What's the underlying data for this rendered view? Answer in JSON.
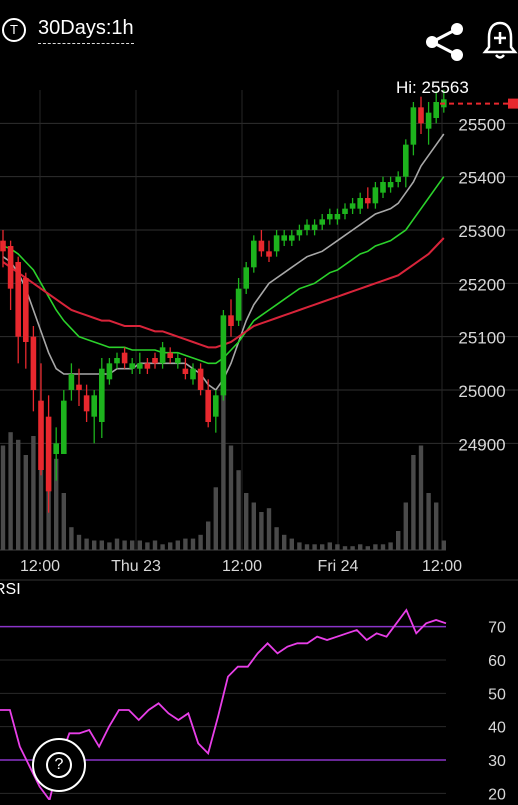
{
  "header": {
    "badge": "T",
    "title": "30Days:1h",
    "share_icon": "share-icon",
    "alert_icon": "bell-plus-icon"
  },
  "help": {
    "label": "?"
  },
  "chart_data": [
    {
      "type": "candlestick",
      "title": "",
      "x_labels": [
        "12:00",
        "Thu 23",
        "12:00",
        "Fri 24",
        "12:00"
      ],
      "y_ticks": [
        25500,
        25400,
        25300,
        25200,
        25100,
        25000,
        24900
      ],
      "ylim": [
        24700,
        25600
      ],
      "high_label": "Hi: 25563",
      "last_price": 25537,
      "colors": {
        "up": "#1db31d",
        "down": "#e8282e",
        "ma_gray": "#a8a8a8",
        "ma_green": "#2bd12b",
        "ma_red": "#d8243a",
        "volume": "#4a4a4a",
        "price_line": "#e8282e"
      },
      "candles": [
        [
          25280,
          25300,
          25230,
          25260
        ],
        [
          25270,
          25280,
          25150,
          25190
        ],
        [
          25240,
          25250,
          25050,
          25100
        ],
        [
          25210,
          25220,
          25040,
          25090
        ],
        [
          25100,
          25120,
          24960,
          25000
        ],
        [
          24980,
          25050,
          24840,
          24850
        ],
        [
          24950,
          24990,
          24770,
          24810
        ],
        [
          24880,
          24930,
          24830,
          24900
        ],
        [
          24880,
          25000,
          24880,
          24980
        ],
        [
          25000,
          25050,
          24980,
          25030
        ],
        [
          25010,
          25040,
          24970,
          25000
        ],
        [
          24990,
          25010,
          24940,
          24960
        ],
        [
          24950,
          25000,
          24900,
          24990
        ],
        [
          24940,
          25060,
          24910,
          25040
        ],
        [
          25020,
          25060,
          25010,
          25050
        ],
        [
          25050,
          25070,
          25040,
          25060
        ],
        [
          25070,
          25080,
          25040,
          25050
        ],
        [
          25040,
          25060,
          25030,
          25050
        ],
        [
          25040,
          25070,
          25030,
          25050
        ],
        [
          25050,
          25060,
          25030,
          25040
        ],
        [
          25060,
          25070,
          25040,
          25050
        ],
        [
          25050,
          25090,
          25040,
          25080
        ],
        [
          25070,
          25080,
          25050,
          25060
        ],
        [
          25050,
          25070,
          25040,
          25060
        ],
        [
          25040,
          25060,
          25020,
          25030
        ],
        [
          25020,
          25050,
          25010,
          25040
        ],
        [
          25040,
          25050,
          24990,
          25000
        ],
        [
          25000,
          25020,
          24930,
          24940
        ],
        [
          24950,
          25000,
          24920,
          24990
        ],
        [
          24990,
          25150,
          24980,
          25140
        ],
        [
          25140,
          25170,
          25100,
          25120
        ],
        [
          25130,
          25210,
          25120,
          25190
        ],
        [
          25190,
          25240,
          25180,
          25230
        ],
        [
          25230,
          25290,
          25220,
          25280
        ],
        [
          25280,
          25300,
          25250,
          25260
        ],
        [
          25260,
          25280,
          25240,
          25250
        ],
        [
          25260,
          25300,
          25250,
          25290
        ],
        [
          25280,
          25300,
          25270,
          25290
        ],
        [
          25280,
          25300,
          25270,
          25290
        ],
        [
          25290,
          25310,
          25280,
          25300
        ],
        [
          25300,
          25320,
          25290,
          25310
        ],
        [
          25300,
          25320,
          25290,
          25310
        ],
        [
          25310,
          25330,
          25300,
          25320
        ],
        [
          25320,
          25340,
          25310,
          25330
        ],
        [
          25320,
          25340,
          25310,
          25330
        ],
        [
          25330,
          25350,
          25320,
          25340
        ],
        [
          25340,
          25360,
          25330,
          25350
        ],
        [
          25340,
          25370,
          25330,
          25360
        ],
        [
          25360,
          25380,
          25340,
          25350
        ],
        [
          25350,
          25390,
          25340,
          25380
        ],
        [
          25370,
          25400,
          25360,
          25390
        ],
        [
          25380,
          25400,
          25370,
          25390
        ],
        [
          25390,
          25410,
          25380,
          25400
        ],
        [
          25400,
          25470,
          25380,
          25460
        ],
        [
          25460,
          25540,
          25440,
          25530
        ],
        [
          25530,
          25550,
          25480,
          25500
        ],
        [
          25490,
          25540,
          25460,
          25520
        ],
        [
          25510,
          25560,
          25500,
          25540
        ],
        [
          25530,
          25563,
          25520,
          25545
        ]
      ],
      "ma_gray": [
        25250,
        25240,
        25220,
        25190,
        25150,
        25110,
        25070,
        25040,
        25030,
        25030,
        25030,
        25030,
        25030,
        25030,
        25030,
        25040,
        25040,
        25040,
        25050,
        25050,
        25050,
        25050,
        25050,
        25050,
        25050,
        25040,
        25030,
        25010,
        25000,
        25020,
        25050,
        25090,
        25130,
        25160,
        25180,
        25200,
        25210,
        25220,
        25230,
        25240,
        25250,
        25255,
        25260,
        25270,
        25280,
        25290,
        25300,
        25310,
        25320,
        25330,
        25335,
        25340,
        25350,
        25370,
        25390,
        25420,
        25440,
        25460,
        25480
      ],
      "ma_green": [
        25270,
        25265,
        25255,
        25240,
        25225,
        25200,
        25175,
        25150,
        25130,
        25115,
        25100,
        25095,
        25090,
        25085,
        25080,
        25080,
        25080,
        25075,
        25075,
        25075,
        25075,
        25070,
        25070,
        25070,
        25065,
        25060,
        25055,
        25050,
        25050,
        25060,
        25075,
        25090,
        25110,
        25130,
        25140,
        25150,
        25160,
        25170,
        25180,
        25190,
        25195,
        25200,
        25210,
        25220,
        25225,
        25235,
        25245,
        25255,
        25260,
        25270,
        25275,
        25280,
        25290,
        25300,
        25320,
        25340,
        25360,
        25380,
        25400
      ],
      "ma_red": [
        25240,
        25230,
        25220,
        25210,
        25200,
        25190,
        25180,
        25170,
        25160,
        25150,
        25145,
        25140,
        25135,
        25130,
        25130,
        25125,
        25120,
        25120,
        25120,
        25115,
        25110,
        25110,
        25105,
        25100,
        25095,
        25090,
        25085,
        25080,
        25080,
        25085,
        25090,
        25100,
        25110,
        25120,
        25125,
        25130,
        25135,
        25140,
        25145,
        25150,
        25155,
        25160,
        25165,
        25170,
        25175,
        25180,
        25185,
        25190,
        25195,
        25200,
        25205,
        25210,
        25215,
        25225,
        25235,
        25245,
        25255,
        25270,
        25285
      ],
      "volume": [
        0.55,
        0.62,
        0.58,
        0.5,
        0.6,
        0.52,
        0.55,
        0.48,
        0.3,
        0.12,
        0.08,
        0.06,
        0.05,
        0.05,
        0.04,
        0.06,
        0.05,
        0.05,
        0.05,
        0.04,
        0.05,
        0.03,
        0.04,
        0.05,
        0.06,
        0.06,
        0.08,
        0.15,
        0.33,
        0.88,
        0.55,
        0.42,
        0.3,
        0.25,
        0.2,
        0.22,
        0.12,
        0.08,
        0.06,
        0.04,
        0.03,
        0.03,
        0.03,
        0.04,
        0.03,
        0.02,
        0.02,
        0.03,
        0.02,
        0.03,
        0.03,
        0.04,
        0.1,
        0.25,
        0.5,
        0.55,
        0.3,
        0.25,
        0.05
      ]
    },
    {
      "type": "line",
      "title": "RSI",
      "y_ticks": [
        70,
        60,
        50,
        40,
        30,
        20
      ],
      "ylim": [
        18,
        78
      ],
      "reference_lines": [
        70,
        30
      ],
      "colors": {
        "line": "#e83fe8",
        "reference": "#8a34c8"
      },
      "values": [
        45,
        45,
        34,
        28,
        22,
        18,
        30,
        38,
        38,
        39,
        34,
        40,
        45,
        45,
        42,
        45,
        47,
        44,
        42,
        44,
        35,
        32,
        43,
        55,
        58,
        58,
        62,
        65,
        62,
        64,
        65,
        65,
        67,
        66,
        67,
        68,
        69,
        66,
        68,
        67,
        71,
        75,
        68,
        71,
        72,
        71
      ]
    }
  ]
}
